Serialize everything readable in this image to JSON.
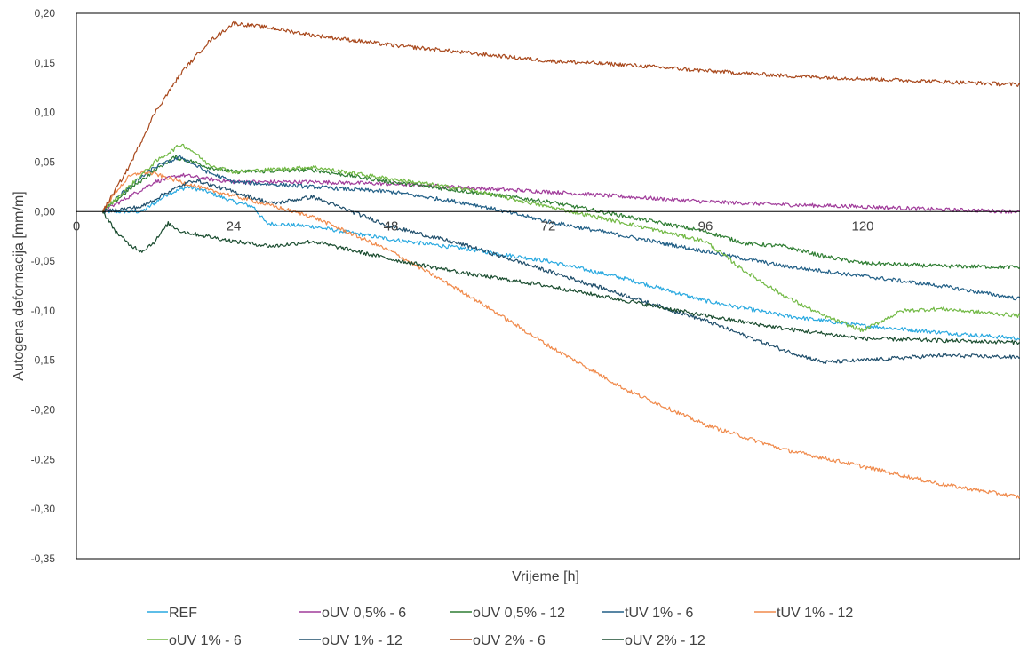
{
  "chart_data": {
    "type": "line",
    "title": "",
    "xlabel": "Vrijeme [h]",
    "ylabel": "Autogena deformacija [mm/m]",
    "xlim": [
      0,
      144
    ],
    "ylim": [
      -0.35,
      0.2
    ],
    "x_ticks": [
      0,
      24,
      48,
      72,
      96,
      120
    ],
    "x_tick_labels": [
      "0",
      "24",
      "48",
      "72",
      "96",
      "120"
    ],
    "y_ticks": [
      0.2,
      0.15,
      0.1,
      0.05,
      0.0,
      -0.05,
      -0.1,
      -0.15,
      -0.2,
      -0.25,
      -0.3,
      -0.35
    ],
    "y_tick_labels": [
      "0,20",
      "0,15",
      "0,10",
      "0,05",
      "0,00",
      "-0,05",
      "-0,10",
      "-0,15",
      "-0,20",
      "-0,25",
      "-0,30",
      "-0,35"
    ],
    "grid": false,
    "legend_position": "bottom",
    "series": [
      {
        "name": "REF",
        "color": "#29a9e0",
        "x": [
          4,
          7,
          10,
          14,
          17,
          20,
          24,
          27,
          29,
          36,
          48,
          60,
          72,
          84,
          96,
          108,
          120,
          132,
          144
        ],
        "y": [
          0,
          0,
          0,
          0.018,
          0.025,
          0.02,
          0.01,
          0.005,
          -0.012,
          -0.015,
          -0.028,
          -0.038,
          -0.05,
          -0.068,
          -0.09,
          -0.105,
          -0.115,
          -0.122,
          -0.128
        ]
      },
      {
        "name": "oUV 0,5% - 6",
        "color": "#a03b9a",
        "x": [
          4,
          8,
          12,
          16,
          20,
          24,
          36,
          48,
          60,
          72,
          84,
          96,
          108,
          120,
          132,
          144
        ],
        "y": [
          0,
          0.015,
          0.03,
          0.037,
          0.033,
          0.03,
          0.03,
          0.028,
          0.024,
          0.02,
          0.015,
          0.01,
          0.007,
          0.005,
          0.002,
          0
        ]
      },
      {
        "name": "oUV 0,5% - 12",
        "color": "#2e7d32",
        "x": [
          4,
          8,
          12,
          15,
          18,
          20,
          24,
          36,
          48,
          60,
          72,
          84,
          96,
          102,
          108,
          114,
          120,
          132,
          144
        ],
        "y": [
          0,
          0.022,
          0.042,
          0.055,
          0.05,
          0.045,
          0.04,
          0.042,
          0.03,
          0.02,
          0.01,
          -0.005,
          -0.02,
          -0.032,
          -0.035,
          -0.045,
          -0.052,
          -0.055,
          -0.056
        ]
      },
      {
        "name": "tUV 1% - 6",
        "color": "#215f86",
        "x": [
          4,
          8,
          12,
          16,
          20,
          24,
          36,
          48,
          60,
          72,
          84,
          96,
          108,
          120,
          132,
          144
        ],
        "y": [
          0,
          0.025,
          0.045,
          0.055,
          0.04,
          0.03,
          0.025,
          0.02,
          0.008,
          -0.01,
          -0.025,
          -0.04,
          -0.055,
          -0.065,
          -0.075,
          -0.088
        ]
      },
      {
        "name": "tUV 1% - 12",
        "color": "#f08a4b",
        "x": [
          4,
          6,
          8,
          10,
          12,
          16,
          20,
          24,
          36,
          48,
          60,
          72,
          84,
          96,
          108,
          120,
          132,
          144
        ],
        "y": [
          0,
          0.02,
          0.035,
          0.04,
          0.038,
          0.03,
          0.022,
          0.016,
          -0.005,
          -0.04,
          -0.085,
          -0.135,
          -0.18,
          -0.215,
          -0.24,
          -0.257,
          -0.275,
          -0.288
        ]
      },
      {
        "name": "oUV 1% - 6",
        "color": "#72b945",
        "x": [
          4,
          8,
          12,
          16,
          18,
          20,
          24,
          36,
          48,
          60,
          72,
          84,
          96,
          102,
          108,
          114,
          120,
          126,
          132,
          144
        ],
        "y": [
          0,
          0.025,
          0.05,
          0.068,
          0.06,
          0.048,
          0.04,
          0.045,
          0.033,
          0.022,
          0.005,
          -0.012,
          -0.03,
          -0.06,
          -0.085,
          -0.105,
          -0.12,
          -0.1,
          -0.098,
          -0.105
        ]
      },
      {
        "name": "oUV 1% - 12",
        "color": "#1f4e6b",
        "x": [
          4,
          10,
          14,
          18,
          24,
          30,
          36,
          42,
          48,
          60,
          72,
          84,
          96,
          108,
          114,
          120,
          132,
          144
        ],
        "y": [
          0,
          0.005,
          0.02,
          0.032,
          0.02,
          0.008,
          0.015,
          0.0,
          -0.015,
          -0.035,
          -0.06,
          -0.085,
          -0.11,
          -0.14,
          -0.152,
          -0.15,
          -0.145,
          -0.147
        ]
      },
      {
        "name": "oUV 2% - 6",
        "color": "#a8481c",
        "x": [
          4,
          8,
          12,
          16,
          20,
          24,
          30,
          36,
          48,
          60,
          72,
          84,
          96,
          108,
          120,
          132,
          144
        ],
        "y": [
          0,
          0.045,
          0.1,
          0.14,
          0.17,
          0.19,
          0.185,
          0.178,
          0.168,
          0.16,
          0.152,
          0.148,
          0.142,
          0.137,
          0.134,
          0.131,
          0.128
        ]
      },
      {
        "name": "oUV 2% - 12",
        "color": "#1b4d30",
        "x": [
          4,
          6,
          8,
          10,
          12,
          14,
          16,
          20,
          24,
          30,
          36,
          48,
          60,
          72,
          84,
          96,
          108,
          120,
          132,
          144
        ],
        "y": [
          0,
          -0.02,
          -0.033,
          -0.04,
          -0.03,
          -0.012,
          -0.02,
          -0.025,
          -0.03,
          -0.035,
          -0.03,
          -0.048,
          -0.063,
          -0.075,
          -0.09,
          -0.105,
          -0.118,
          -0.128,
          -0.13,
          -0.132
        ]
      }
    ]
  }
}
